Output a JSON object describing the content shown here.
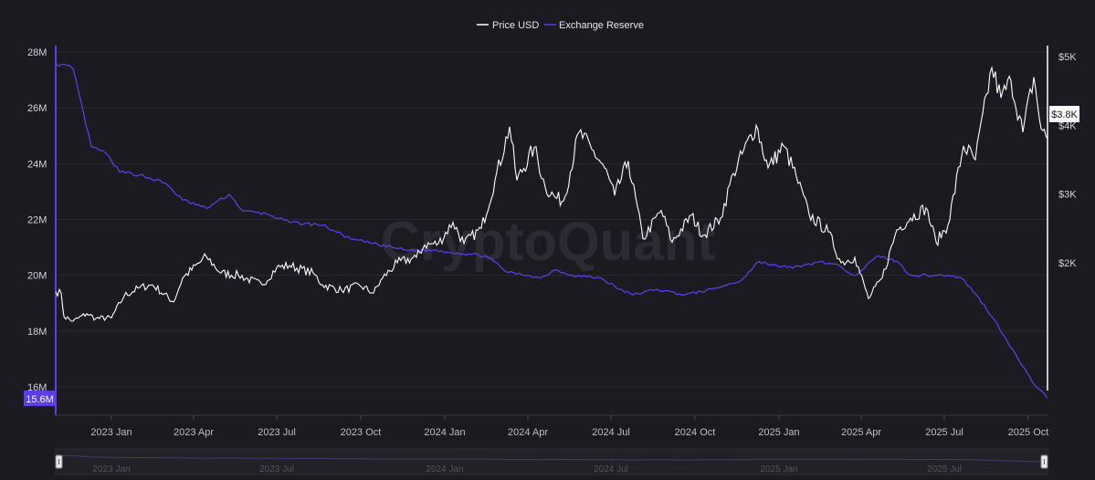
{
  "watermark": "CryptoQuant",
  "chart_data": {
    "type": "line",
    "legend": {
      "placement": "top-center"
    },
    "grid": true,
    "x_range": [
      "2022-11-01",
      "2025-10-22"
    ],
    "left_axis": {
      "ticks": [
        {
          "value": 16000000,
          "label": "16M"
        },
        {
          "value": 18000000,
          "label": "18M"
        },
        {
          "value": 20000000,
          "label": "20M"
        },
        {
          "value": 22000000,
          "label": "22M"
        },
        {
          "value": 24000000,
          "label": "24M"
        },
        {
          "value": 26000000,
          "label": "26M"
        },
        {
          "value": 28000000,
          "label": "28M"
        }
      ],
      "range": [
        15600000,
        28200000
      ],
      "current_value_label": "15.6M",
      "color": "#5b3ee6"
    },
    "right_axis": {
      "ticks": [
        {
          "value": 2000,
          "label": "$2K"
        },
        {
          "value": 3000,
          "label": "$3K"
        },
        {
          "value": 4000,
          "label": "$4K"
        },
        {
          "value": 5000,
          "label": "$5K"
        }
      ],
      "range": [
        1000,
        5060
      ],
      "current_value_label": "$3.8K",
      "color": "#ffffff"
    },
    "x_ticks": [
      {
        "date": "2023-01-01",
        "label": "2023 Jan"
      },
      {
        "date": "2023-04-01",
        "label": "2023 Apr"
      },
      {
        "date": "2023-07-01",
        "label": "2023 Jul"
      },
      {
        "date": "2023-10-01",
        "label": "2023 Oct"
      },
      {
        "date": "2024-01-01",
        "label": "2024 Jan"
      },
      {
        "date": "2024-04-01",
        "label": "2024 Apr"
      },
      {
        "date": "2024-07-01",
        "label": "2024 Jul"
      },
      {
        "date": "2024-10-01",
        "label": "2024 Oct"
      },
      {
        "date": "2025-01-01",
        "label": "2025 Jan"
      },
      {
        "date": "2025-04-01",
        "label": "2025 Apr"
      },
      {
        "date": "2025-07-01",
        "label": "2025 Jul"
      },
      {
        "date": "2025-10-01",
        "label": "2025 Oct"
      }
    ],
    "navigator_labels": [
      {
        "date": "2023-01-01",
        "label": "2023 Jan"
      },
      {
        "date": "2023-07-01",
        "label": "2023 Jul"
      },
      {
        "date": "2024-01-01",
        "label": "2024 Jan"
      },
      {
        "date": "2024-07-01",
        "label": "2024 Jul"
      },
      {
        "date": "2025-01-01",
        "label": "2025 Jan"
      },
      {
        "date": "2025-07-01",
        "label": "2025 Jul"
      }
    ],
    "series": [
      {
        "name": "Price USD",
        "axis": "right",
        "color": "#ffffff",
        "points": [
          [
            "2022-11-01",
            1580
          ],
          [
            "2022-11-07",
            1560
          ],
          [
            "2022-11-10",
            1220
          ],
          [
            "2022-11-20",
            1150
          ],
          [
            "2022-12-05",
            1260
          ],
          [
            "2022-12-15",
            1190
          ],
          [
            "2023-01-01",
            1200
          ],
          [
            "2023-01-15",
            1520
          ],
          [
            "2023-02-01",
            1640
          ],
          [
            "2023-02-15",
            1680
          ],
          [
            "2023-03-10",
            1430
          ],
          [
            "2023-03-20",
            1780
          ],
          [
            "2023-04-15",
            2090
          ],
          [
            "2023-05-01",
            1850
          ],
          [
            "2023-05-20",
            1820
          ],
          [
            "2023-06-15",
            1680
          ],
          [
            "2023-07-01",
            1930
          ],
          [
            "2023-07-15",
            1960
          ],
          [
            "2023-08-10",
            1850
          ],
          [
            "2023-08-20",
            1680
          ],
          [
            "2023-09-10",
            1600
          ],
          [
            "2023-09-30",
            1670
          ],
          [
            "2023-10-15",
            1560
          ],
          [
            "2023-10-25",
            1780
          ],
          [
            "2023-11-10",
            2000
          ],
          [
            "2023-12-01",
            2080
          ],
          [
            "2023-12-10",
            2260
          ],
          [
            "2023-12-25",
            2280
          ],
          [
            "2024-01-10",
            2590
          ],
          [
            "2024-01-22",
            2280
          ],
          [
            "2024-02-10",
            2500
          ],
          [
            "2024-02-25",
            3200
          ],
          [
            "2024-03-12",
            3980
          ],
          [
            "2024-03-20",
            3200
          ],
          [
            "2024-04-08",
            3680
          ],
          [
            "2024-04-20",
            3100
          ],
          [
            "2024-05-01",
            2950
          ],
          [
            "2024-05-10",
            2900
          ],
          [
            "2024-05-27",
            3900
          ],
          [
            "2024-06-10",
            3650
          ],
          [
            "2024-06-24",
            3380
          ],
          [
            "2024-07-05",
            2980
          ],
          [
            "2024-07-20",
            3480
          ],
          [
            "2024-08-05",
            2350
          ],
          [
            "2024-08-25",
            2760
          ],
          [
            "2024-09-06",
            2300
          ],
          [
            "2024-09-27",
            2690
          ],
          [
            "2024-10-10",
            2400
          ],
          [
            "2024-10-29",
            2650
          ],
          [
            "2024-11-12",
            3300
          ],
          [
            "2024-12-07",
            4000
          ],
          [
            "2024-12-20",
            3380
          ],
          [
            "2025-01-06",
            3700
          ],
          [
            "2025-01-20",
            3250
          ],
          [
            "2025-02-03",
            2700
          ],
          [
            "2025-02-24",
            2450
          ],
          [
            "2025-03-10",
            2000
          ],
          [
            "2025-03-25",
            2080
          ],
          [
            "2025-04-09",
            1480
          ],
          [
            "2025-04-24",
            1780
          ],
          [
            "2025-05-10",
            2480
          ],
          [
            "2025-05-25",
            2650
          ],
          [
            "2025-06-11",
            2800
          ],
          [
            "2025-06-22",
            2300
          ],
          [
            "2025-07-05",
            2550
          ],
          [
            "2025-07-22",
            3700
          ],
          [
            "2025-08-04",
            3500
          ],
          [
            "2025-08-22",
            4840
          ],
          [
            "2025-09-01",
            4400
          ],
          [
            "2025-09-12",
            4650
          ],
          [
            "2025-09-25",
            3900
          ],
          [
            "2025-10-07",
            4700
          ],
          [
            "2025-10-15",
            3950
          ],
          [
            "2025-10-22",
            3800
          ]
        ]
      },
      {
        "name": "Exchange Reserve",
        "axis": "left",
        "color": "#5b3ee6",
        "points": [
          [
            "2022-11-01",
            27.6
          ],
          [
            "2022-11-20",
            27.4
          ],
          [
            "2022-12-10",
            24.6
          ],
          [
            "2022-12-25",
            24.4
          ],
          [
            "2023-01-10",
            23.7
          ],
          [
            "2023-02-01",
            23.6
          ],
          [
            "2023-03-01",
            23.3
          ],
          [
            "2023-03-20",
            22.7
          ],
          [
            "2023-04-15",
            22.4
          ],
          [
            "2023-05-10",
            22.9
          ],
          [
            "2023-05-25",
            22.3
          ],
          [
            "2023-06-20",
            22.2
          ],
          [
            "2023-07-15",
            21.9
          ],
          [
            "2023-08-20",
            21.8
          ],
          [
            "2023-09-20",
            21.3
          ],
          [
            "2023-10-20",
            21.1
          ],
          [
            "2023-11-20",
            20.9
          ],
          [
            "2023-12-20",
            20.9
          ],
          [
            "2024-01-15",
            20.8
          ],
          [
            "2024-02-15",
            20.7
          ],
          [
            "2024-03-10",
            20.1
          ],
          [
            "2024-04-01",
            20.0
          ],
          [
            "2024-04-15",
            19.9
          ],
          [
            "2024-05-01",
            20.2
          ],
          [
            "2024-05-20",
            20.0
          ],
          [
            "2024-06-20",
            19.9
          ],
          [
            "2024-07-10",
            19.5
          ],
          [
            "2024-07-25",
            19.3
          ],
          [
            "2024-08-20",
            19.5
          ],
          [
            "2024-09-20",
            19.3
          ],
          [
            "2024-10-20",
            19.5
          ],
          [
            "2024-11-20",
            19.8
          ],
          [
            "2024-12-10",
            20.5
          ],
          [
            "2025-01-01",
            20.3
          ],
          [
            "2025-01-25",
            20.3
          ],
          [
            "2025-02-15",
            20.5
          ],
          [
            "2025-03-10",
            20.3
          ],
          [
            "2025-03-25",
            20.0
          ],
          [
            "2025-04-20",
            20.7
          ],
          [
            "2025-05-10",
            20.5
          ],
          [
            "2025-05-25",
            20.0
          ],
          [
            "2025-06-20",
            20.0
          ],
          [
            "2025-07-05",
            20.0
          ],
          [
            "2025-07-20",
            19.9
          ],
          [
            "2025-08-05",
            19.3
          ],
          [
            "2025-08-25",
            18.4
          ],
          [
            "2025-09-05",
            17.8
          ],
          [
            "2025-09-20",
            17.0
          ],
          [
            "2025-10-05",
            16.2
          ],
          [
            "2025-10-22",
            15.6
          ]
        ]
      }
    ]
  }
}
